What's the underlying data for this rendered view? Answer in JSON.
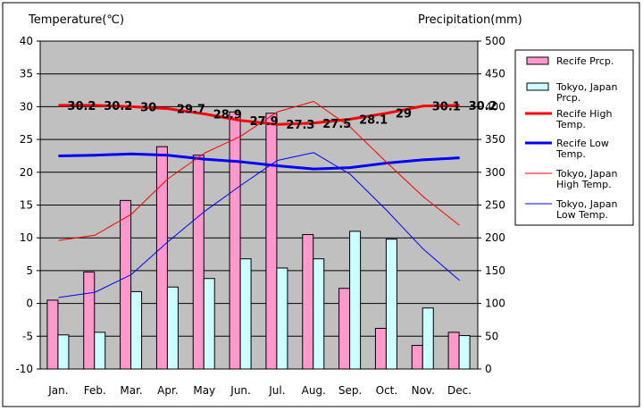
{
  "chart_data": {
    "type": "bar+line",
    "title": "",
    "ylabel_left": "Temperature(℃)",
    "ylabel_right": "Precipitation(mm)",
    "ylim_left": [
      -10,
      40
    ],
    "ylim_right": [
      0,
      500
    ],
    "yticks_left": [
      "40",
      "35",
      "30",
      "25",
      "20",
      "15",
      "10",
      "5",
      "0",
      "-5",
      "-10"
    ],
    "yticks_right": [
      "500",
      "450",
      "400",
      "350",
      "300",
      "250",
      "200",
      "150",
      "100",
      "50",
      "0"
    ],
    "categories": [
      "Jan.",
      "Feb.",
      "Mar.",
      "Apr.",
      "May",
      "Jun.",
      "Jul.",
      "Aug.",
      "Sep.",
      "Oct.",
      "Nov.",
      "Dec."
    ],
    "grid": true,
    "series": [
      {
        "name": "Recife Prcp.",
        "type": "bar",
        "axis": "right",
        "color": "#ff99cc",
        "values": [
          105,
          148,
          257,
          339,
          326,
          392,
          390,
          205,
          123,
          62,
          36,
          56
        ]
      },
      {
        "name": "Tokyo, Japan Prcp.",
        "type": "bar",
        "axis": "right",
        "color": "#ccffff",
        "values": [
          52,
          56,
          118,
          125,
          138,
          168,
          154,
          168,
          210,
          198,
          93,
          51
        ]
      },
      {
        "name": "Recife High Temp.",
        "type": "line",
        "axis": "left",
        "color": "#ff0000",
        "width": 3,
        "values": [
          30.2,
          30.2,
          30,
          29.7,
          28.9,
          27.9,
          27.3,
          27.5,
          28.1,
          29,
          30.1,
          30.2
        ],
        "labels": [
          "30.2",
          "30.2",
          "30",
          "29.7",
          "28.9",
          "27.9",
          "27.3",
          "27.5",
          "28.1",
          "29",
          "30.1",
          "30.2"
        ]
      },
      {
        "name": "Recife Low Temp.",
        "type": "line",
        "axis": "left",
        "color": "#0000ff",
        "width": 3,
        "values": [
          22.5,
          22.6,
          22.8,
          22.6,
          22.0,
          21.6,
          21.0,
          20.5,
          20.7,
          21.4,
          21.9,
          22.2
        ]
      },
      {
        "name": "Tokyo, Japan High Temp.",
        "type": "line",
        "axis": "left",
        "color": "#ff0000",
        "width": 1,
        "values": [
          9.6,
          10.4,
          13.6,
          19.0,
          22.9,
          25.5,
          29.2,
          30.8,
          26.9,
          21.5,
          16.3,
          11.9
        ]
      },
      {
        "name": "Tokyo, Japan Low Temp.",
        "type": "line",
        "axis": "left",
        "color": "#0000ff",
        "width": 1,
        "values": [
          0.9,
          1.7,
          4.4,
          9.4,
          14.0,
          18.0,
          21.8,
          23.0,
          19.7,
          14.2,
          8.3,
          3.5
        ]
      }
    ],
    "legend": {
      "position": "right",
      "entries": [
        [
          "Recife Prcp."
        ],
        [
          "Tokyo, Japan",
          "Prcp."
        ],
        [
          "Recife High",
          "Temp."
        ],
        [
          "Recife Low",
          "Temp."
        ],
        [
          "Tokyo, Japan",
          "High Temp."
        ],
        [
          "Tokyo, Japan",
          "Low Temp."
        ]
      ]
    }
  }
}
